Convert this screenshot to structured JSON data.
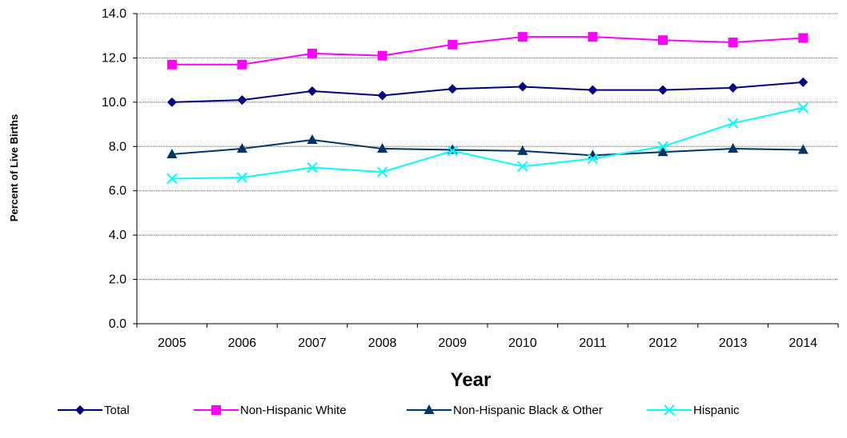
{
  "chart_data": {
    "type": "line",
    "title": "",
    "xlabel": "Year",
    "ylabel": "Percent of Live Births",
    "categories": [
      "2005",
      "2006",
      "2007",
      "2008",
      "2009",
      "2010",
      "2011",
      "2012",
      "2013",
      "2014"
    ],
    "ylim": [
      0,
      14
    ],
    "yticks": [
      "0.0",
      "2.0",
      "4.0",
      "6.0",
      "8.0",
      "10.0",
      "12.0",
      "14.0"
    ],
    "grid": true,
    "legend_position": "bottom",
    "series": [
      {
        "name": "Total",
        "color": "#000080",
        "marker": "diamond",
        "values": [
          10.0,
          10.1,
          10.5,
          10.3,
          10.6,
          10.7,
          10.55,
          10.55,
          10.65,
          10.9
        ]
      },
      {
        "name": "Non-Hispanic White",
        "color": "#ff00ff",
        "marker": "square",
        "values": [
          11.7,
          11.7,
          12.2,
          12.1,
          12.6,
          12.95,
          12.95,
          12.8,
          12.7,
          12.9
        ]
      },
      {
        "name": "Non-Hispanic Black & Other",
        "color": "#003366",
        "marker": "triangle",
        "values": [
          7.65,
          7.9,
          8.3,
          7.9,
          7.85,
          7.8,
          7.6,
          7.75,
          7.9,
          7.85
        ]
      },
      {
        "name": "Hispanic",
        "color": "#00ffff",
        "marker": "x",
        "values": [
          6.55,
          6.6,
          7.05,
          6.85,
          7.8,
          7.1,
          7.45,
          8.0,
          9.05,
          9.75
        ]
      }
    ]
  }
}
